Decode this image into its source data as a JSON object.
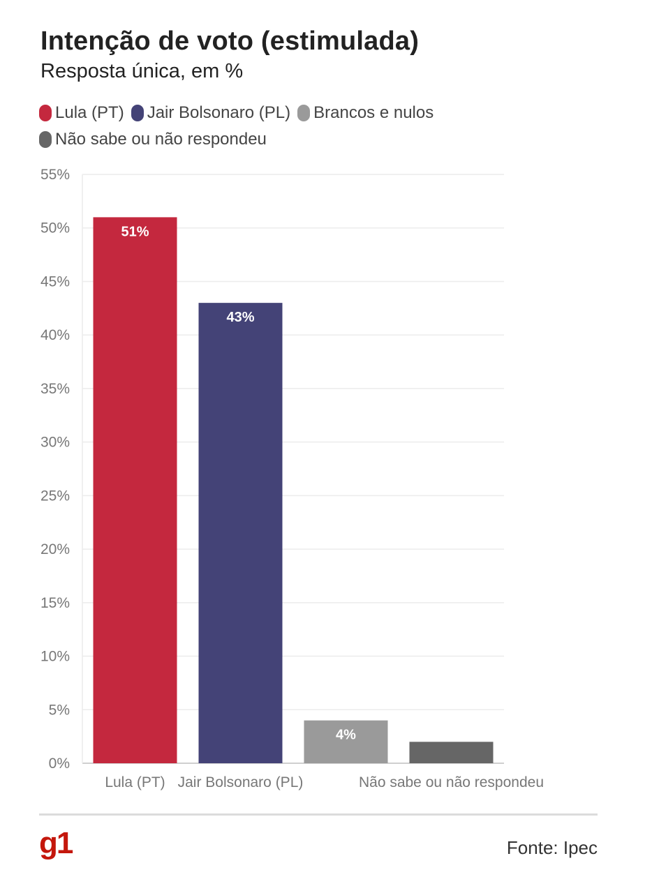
{
  "header": {
    "title": "Intenção de voto (estimulada)",
    "subtitle": "Resposta única, em %"
  },
  "legend": [
    {
      "label": "Lula (PT)",
      "color": "#c4283e"
    },
    {
      "label": "Jair Bolsonaro (PL)",
      "color": "#444377"
    },
    {
      "label": "Brancos e nulos",
      "color": "#9a9a9a"
    },
    {
      "label": "Não sabe ou não respondeu",
      "color": "#666666"
    }
  ],
  "chart_data": {
    "type": "bar",
    "categories": [
      "Lula (PT)",
      "Jair Bolsonaro (PL)",
      "Brancos e nulos",
      "Não sabe ou não respondeu"
    ],
    "x_tick_labels": [
      "Lula (PT)",
      "Jair Bolsonaro (PL)",
      "",
      "Não sabe ou não respondeu"
    ],
    "values": [
      51,
      43,
      4,
      2
    ],
    "data_labels": [
      "51%",
      "43%",
      "4%",
      ""
    ],
    "colors": [
      "#c4283e",
      "#444377",
      "#9a9a9a",
      "#666666"
    ],
    "ylim": [
      0,
      55
    ],
    "y_ticks": [
      0,
      5,
      10,
      15,
      20,
      25,
      30,
      35,
      40,
      45,
      50,
      55
    ],
    "y_tick_labels": [
      "0%",
      "5%",
      "10%",
      "15%",
      "20%",
      "25%",
      "30%",
      "35%",
      "40%",
      "45%",
      "50%",
      "55%"
    ],
    "grid": true
  },
  "footer": {
    "logo": "g1",
    "source": "Fonte: Ipec"
  }
}
